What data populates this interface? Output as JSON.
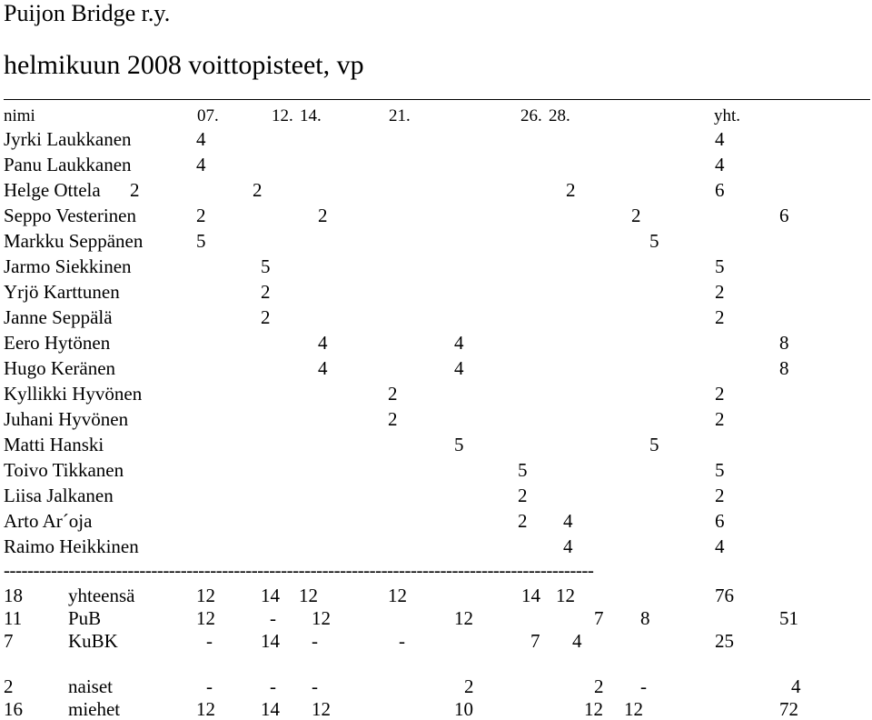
{
  "header": {
    "club": "Puijon Bridge r.y.",
    "title": "helmikuun 2008 voittopisteet, vp"
  },
  "columns": {
    "name": "nimi",
    "dates": [
      "07.",
      "12.",
      "14.",
      "21.",
      "26.",
      "28."
    ],
    "total": "yht."
  },
  "players": [
    {
      "name": "Jyrki Laukkanen",
      "points": [
        "4",
        "4"
      ]
    },
    {
      "name": "Panu Laukkanen",
      "points": [
        "4",
        "4"
      ]
    },
    {
      "name": "Helge Ottela",
      "points": [
        "2",
        "2",
        "2",
        "6"
      ]
    },
    {
      "name": "Seppo Vesterinen",
      "points": [
        "2",
        "2",
        "2",
        "6"
      ]
    },
    {
      "name": "Markku Seppänen",
      "points": [
        "5",
        "5"
      ]
    },
    {
      "name": "Jarmo Siekkinen",
      "points": [
        "5",
        "5"
      ]
    },
    {
      "name": "Yrjö Karttunen",
      "points": [
        "2",
        "2"
      ]
    },
    {
      "name": "Janne Seppälä",
      "points": [
        "2",
        "2"
      ]
    },
    {
      "name": "Eero Hytönen",
      "points": [
        "4",
        "4",
        "8"
      ]
    },
    {
      "name": "Hugo Keränen",
      "points": [
        "4",
        "4",
        "8"
      ]
    },
    {
      "name": "Kyllikki Hyvönen",
      "points": [
        "2",
        "2"
      ]
    },
    {
      "name": "Juhani Hyvönen",
      "points": [
        "2",
        "2"
      ]
    },
    {
      "name": "Matti Hanski",
      "points": [
        "5",
        "5"
      ]
    },
    {
      "name": "Toivo Tikkanen",
      "points": [
        "5",
        "5"
      ]
    },
    {
      "name": "Liisa Jalkanen",
      "points": [
        "2",
        "2"
      ]
    },
    {
      "name": "Arto Ar´oja",
      "points": [
        "2",
        "4",
        "6"
      ]
    },
    {
      "name": "Raimo Heikkinen",
      "points": [
        "4",
        "4"
      ]
    }
  ],
  "separator": "----------------------------------------------------------------------------------------------------",
  "summary": [
    {
      "count": "18",
      "label": "yhteensä",
      "values": [
        "12",
        "14",
        "12",
        "12",
        "14",
        "12",
        "76"
      ]
    },
    {
      "count": "11",
      "label": "PuB",
      "values": [
        "12",
        "-",
        "12",
        "12",
        "7",
        "8",
        "51"
      ]
    },
    {
      "count": "7",
      "label": "KuBK",
      "values": [
        "-",
        "14",
        "-",
        "-",
        "7",
        "4",
        "25"
      ]
    }
  ],
  "gender": [
    {
      "count": "2",
      "label": "naiset",
      "values": [
        "-",
        "-",
        "-",
        "2",
        "2",
        "-",
        "4"
      ]
    },
    {
      "count": "16",
      "label": "miehet",
      "values": [
        "12",
        "14",
        "12",
        "10",
        "12",
        "12",
        "72"
      ]
    }
  ]
}
